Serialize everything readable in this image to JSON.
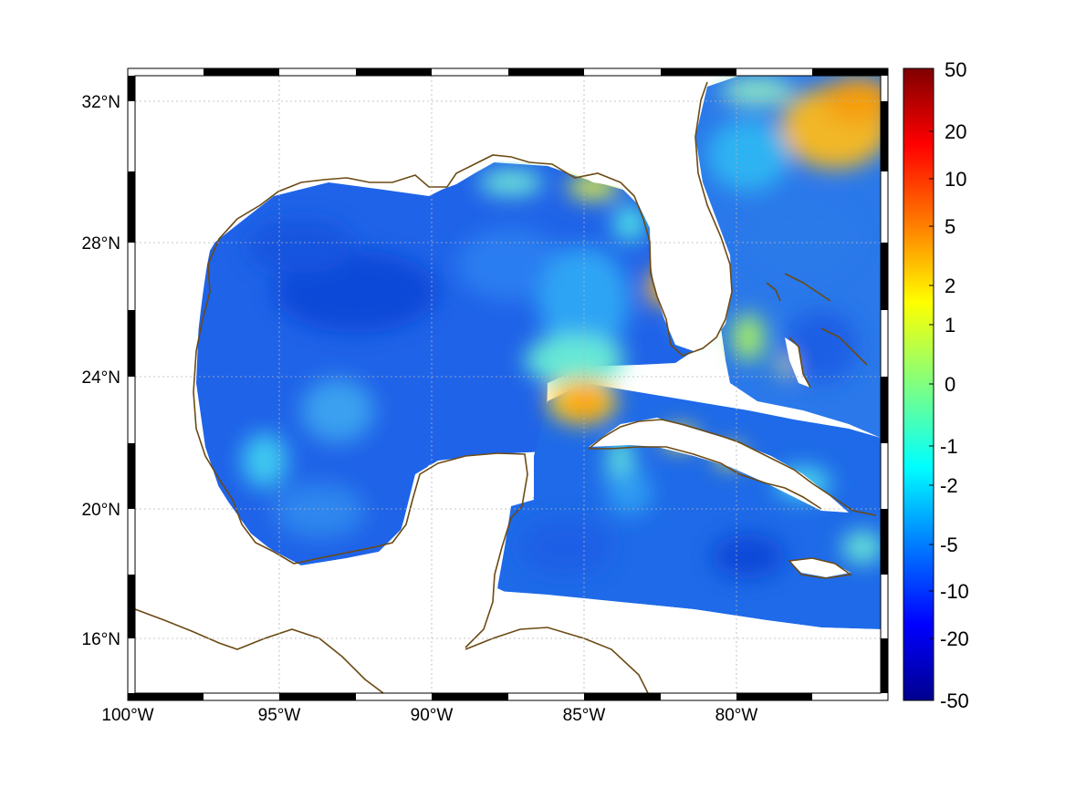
{
  "map": {
    "lon_ticks": [
      "100°W",
      "95°W",
      "90°W",
      "85°W",
      "80°W"
    ],
    "lat_ticks": [
      "32°N",
      "28°N",
      "24°N",
      "20°N",
      "16°N"
    ],
    "grid": true
  },
  "colorbar": {
    "ticks": [
      "50",
      "20",
      "10",
      "5",
      "2",
      "1",
      "0",
      "-1",
      "-2",
      "-5",
      "-10",
      "-20",
      "-50"
    ],
    "colors": [
      "#7f0000",
      "#ff0000",
      "#ff8000",
      "#ffff00",
      "#80ff80",
      "#00ffff",
      "#0080ff",
      "#0000ff",
      "#00008f"
    ]
  },
  "colors": {
    "coastline": "#6b4a14",
    "land": "#ffffff",
    "background_field": "#1f63e8"
  }
}
